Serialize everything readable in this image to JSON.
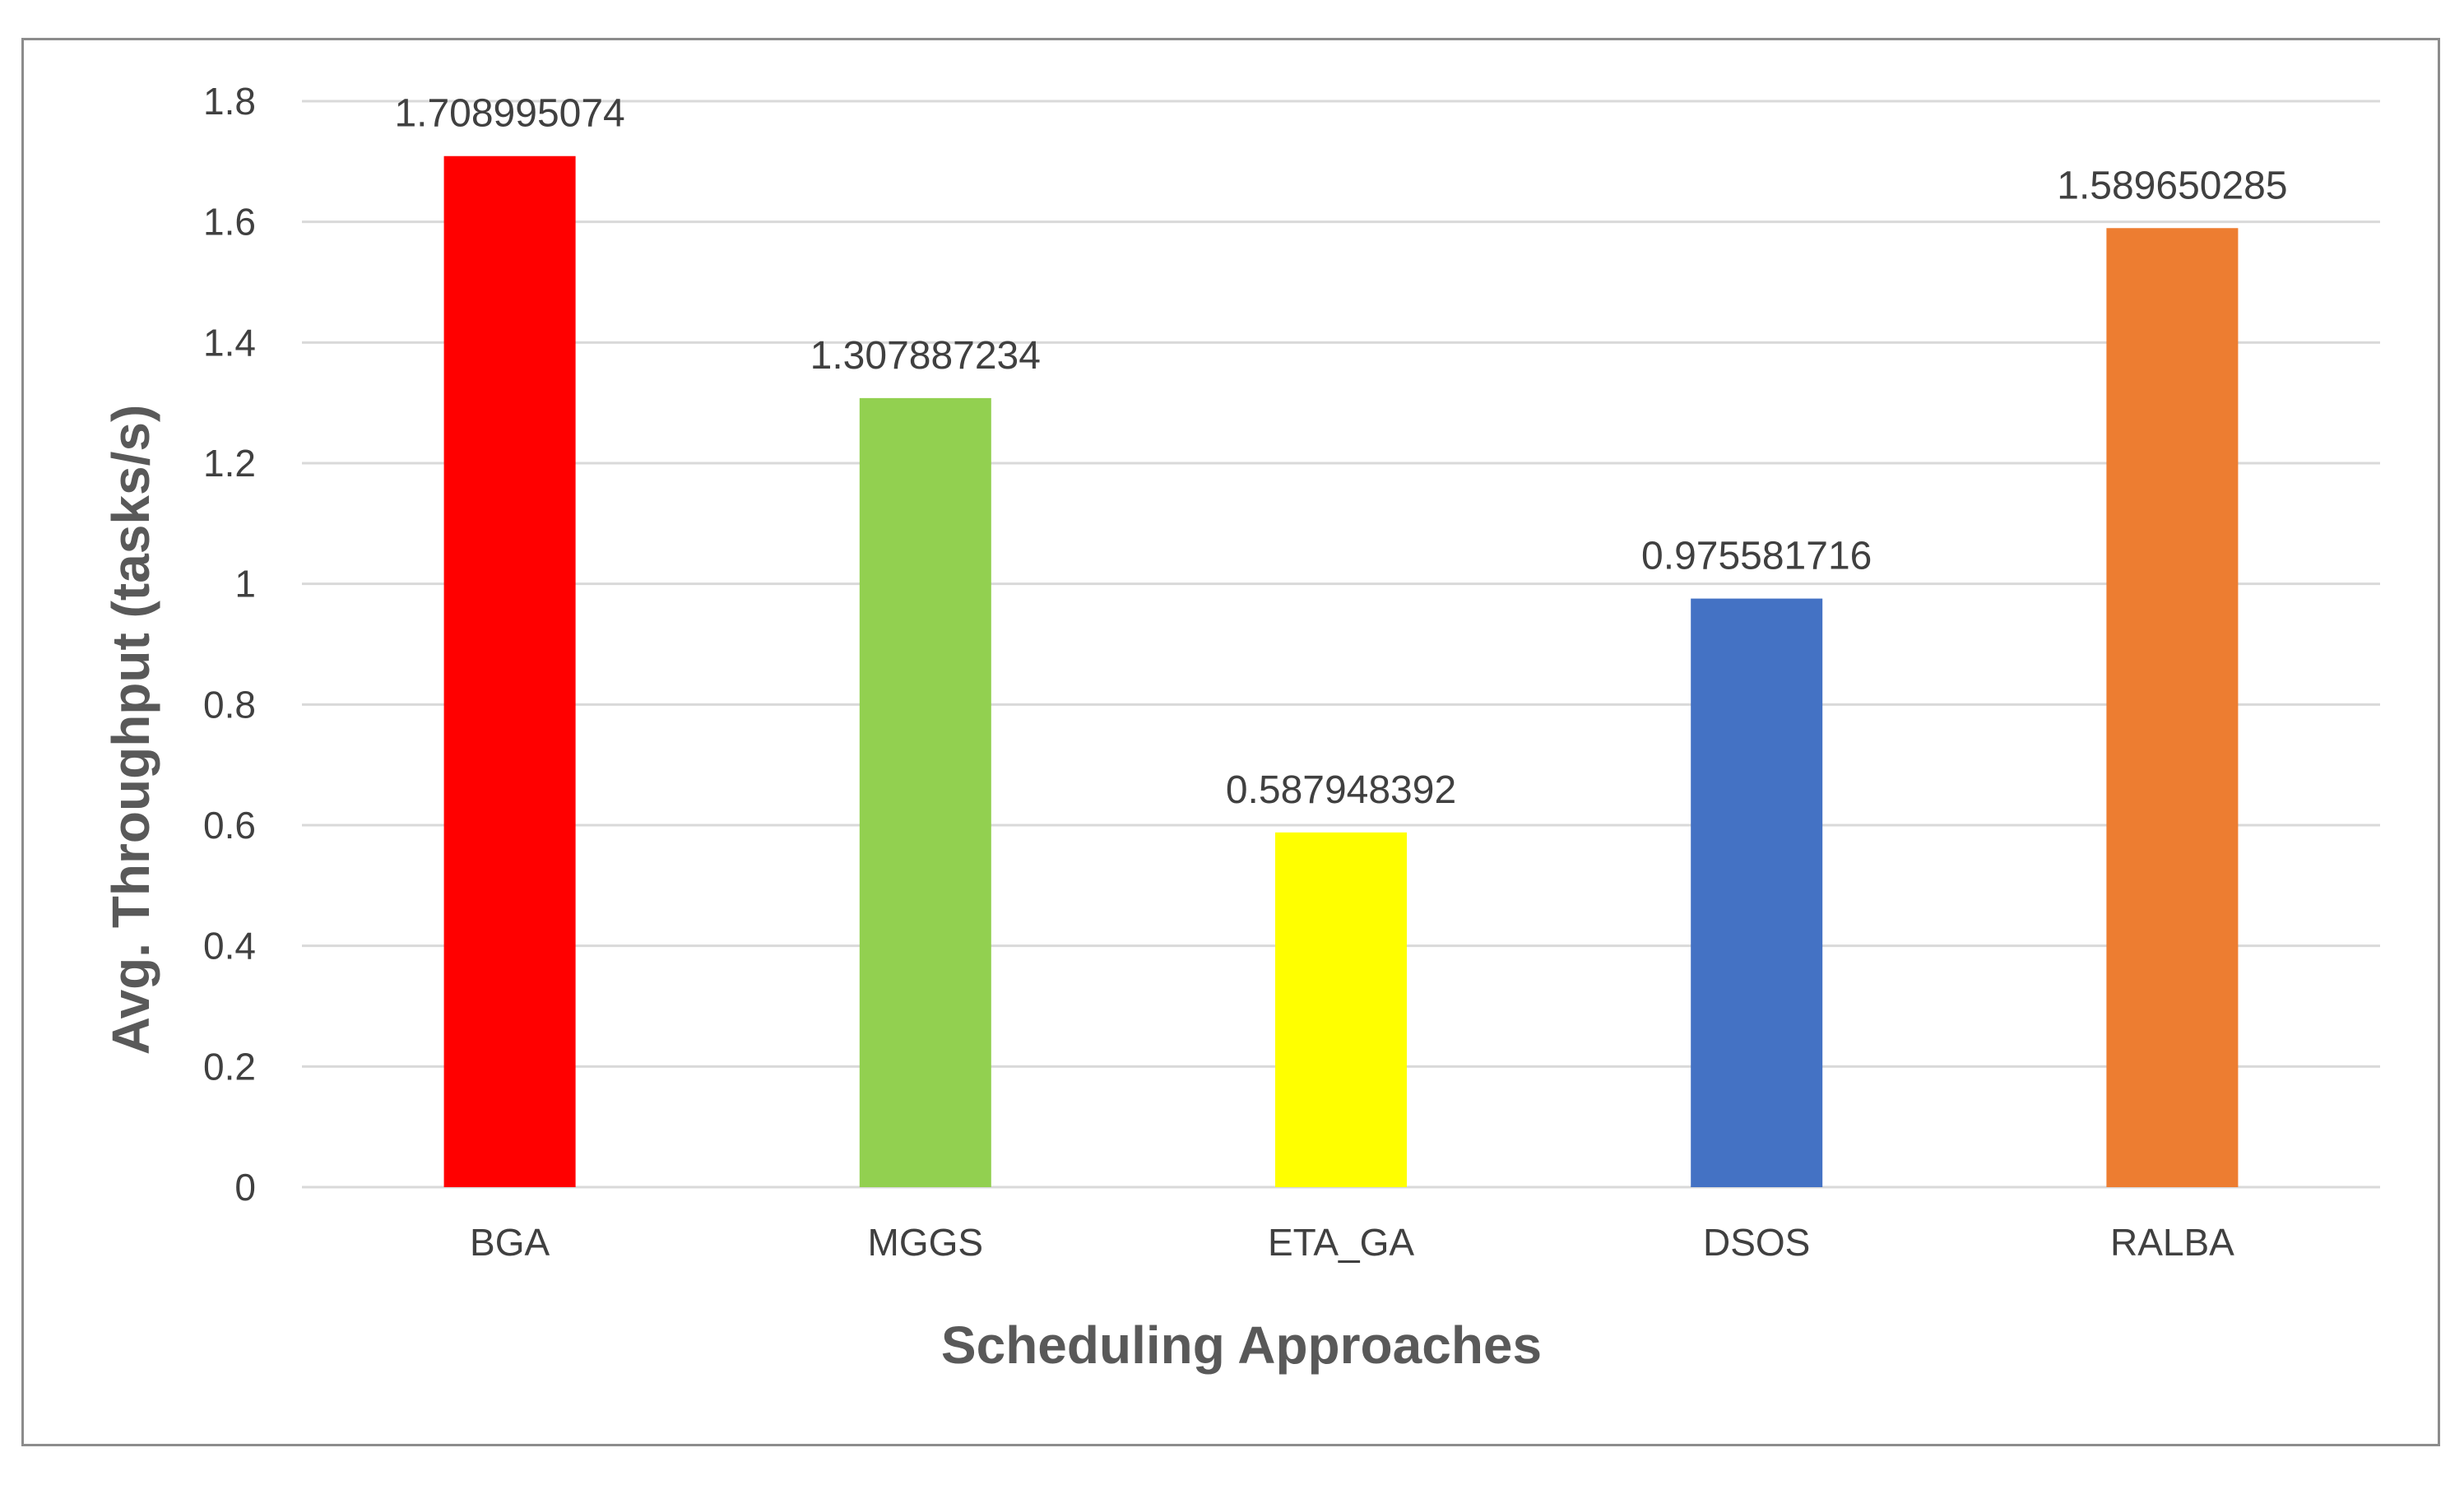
{
  "chart_data": {
    "type": "bar",
    "title": "",
    "xlabel": "Scheduling Approaches",
    "ylabel": "Avg. Throughput (tasks/s)",
    "categories": [
      "BGA",
      "MGGS",
      "ETA_GA",
      "DSOS",
      "RALBA"
    ],
    "values": [
      1.708995074,
      1.307887234,
      0.587948392,
      0.975581716,
      1.589650285
    ],
    "data_labels": [
      "1.708995074",
      "1.307887234",
      "0.587948392",
      "0.975581716",
      "1.589650285"
    ],
    "bar_colors": [
      "#ff0000",
      "#92d050",
      "#ffff00",
      "#4472c4",
      "#ed7d31"
    ],
    "ylim": [
      0,
      1.8
    ],
    "yticks": [
      0,
      0.2,
      0.4,
      0.6,
      0.8,
      1,
      1.2,
      1.4,
      1.6,
      1.8
    ],
    "ytick_labels": [
      "0",
      "0.2",
      "0.4",
      "0.6",
      "0.8",
      "1",
      "1.2",
      "1.4",
      "1.6",
      "1.8"
    ],
    "grid": true,
    "legend": "none"
  }
}
